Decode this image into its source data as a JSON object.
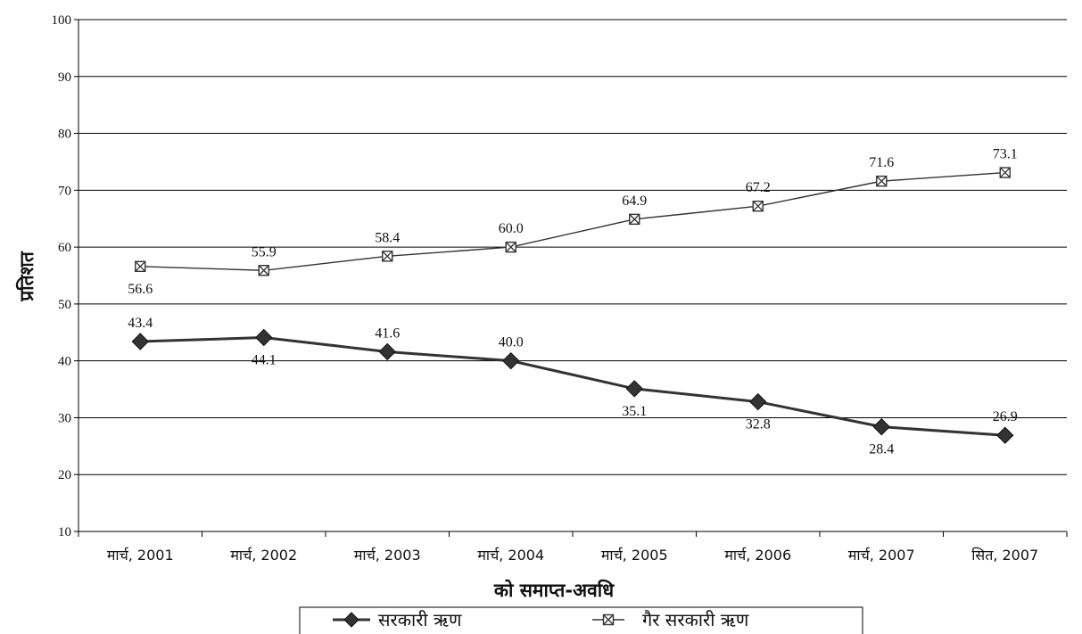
{
  "chart_data": {
    "type": "line",
    "title": "",
    "xlabel": "को समाप्त-अवधि",
    "ylabel": "प्रतिशत",
    "categories": [
      "मार्च, 2001",
      "मार्च, 2002",
      "मार्च, 2003",
      "मार्च, 2004",
      "मार्च, 2005",
      "मार्च, 2006",
      "मार्च, 2007",
      "सित, 2007"
    ],
    "ylim": [
      10,
      100
    ],
    "yticks": [
      10,
      20,
      30,
      40,
      50,
      60,
      70,
      80,
      90,
      100
    ],
    "grid": "horizontal",
    "legend_position": "bottom",
    "series": [
      {
        "name": "सरकारी ऋण",
        "marker": "diamond",
        "color": "#333333",
        "values": [
          43.4,
          44.1,
          41.6,
          40.0,
          35.1,
          32.8,
          28.4,
          26.9
        ],
        "labels": [
          "43.4",
          "44.1",
          "41.6",
          "40.0",
          "35.1",
          "32.8",
          "28.4",
          "26.9"
        ]
      },
      {
        "name": "गैर सरकारी ऋण",
        "marker": "crossed-square",
        "color": "#333333",
        "values": [
          56.6,
          55.9,
          58.4,
          60.0,
          64.9,
          67.2,
          71.6,
          73.1
        ],
        "labels": [
          "56.6",
          "55.9",
          "58.4",
          "60.0",
          "64.9",
          "67.2",
          "71.6",
          "73.1"
        ]
      }
    ]
  }
}
